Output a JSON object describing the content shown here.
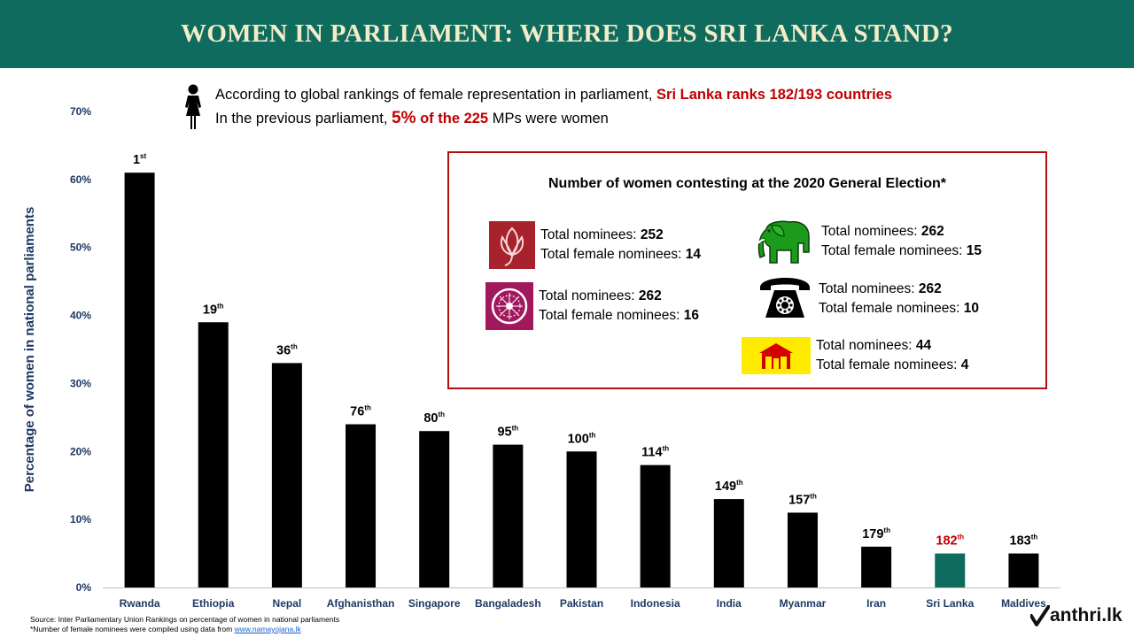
{
  "header": {
    "title": "WOMEN IN PARLIAMENT: WHERE DOES SRI LANKA STAND?"
  },
  "intro": {
    "line1_prefix": "According to global rankings of female representation in parliament, ",
    "line1_highlight": "Sri Lanka ranks 182/193 countries",
    "line2_prefix": "In the previous parliament, ",
    "line2_highlight_pct": "5%",
    "line2_highlight_rest": " of the 225",
    "line2_suffix": " MPs were women"
  },
  "chart_data": {
    "type": "bar",
    "ylabel": "Percentage of women in national parliaments",
    "ylim": [
      0,
      70
    ],
    "ytick_labels": [
      "0%",
      "10%",
      "20%",
      "30%",
      "40%",
      "50%",
      "60%",
      "70%"
    ],
    "categories": [
      "Rwanda",
      "Ethiopia",
      "Nepal",
      "Afghanisthan",
      "Singapore",
      "Bangaladesh",
      "Pakistan",
      "Indonesia",
      "India",
      "Myanmar",
      "Iran",
      "Sri Lanka",
      "Maldives"
    ],
    "values": [
      61,
      39,
      33,
      24,
      23,
      21,
      20,
      18,
      13,
      11,
      6,
      5,
      5
    ],
    "rank_numbers": [
      "1",
      "19",
      "36",
      "76",
      "80",
      "95",
      "100",
      "114",
      "149",
      "157",
      "179",
      "182",
      "183"
    ],
    "rank_suffixes": [
      "st",
      "th",
      "th",
      "th",
      "th",
      "th",
      "th",
      "th",
      "th",
      "th",
      "th",
      "th",
      "th"
    ],
    "highlight_category": "Sri Lanka",
    "bar_color": "#000000",
    "highlight_bar_color": "#0e6b5e",
    "highlight_label_color": "#c00000",
    "axis_label_color": "#1f3864"
  },
  "contest_box": {
    "title": "Number of women contesting  at the 2020 General Election*",
    "total_label": "Total nominees: ",
    "female_label": "Total female nominees: ",
    "parties": [
      {
        "icon": "lotus-bud-icon",
        "total": "252",
        "female": "14"
      },
      {
        "icon": "elephant-icon",
        "total": "262",
        "female": "15"
      },
      {
        "icon": "compass-icon",
        "total": "262",
        "female": "16"
      },
      {
        "icon": "telephone-icon",
        "total": "262",
        "female": "10"
      },
      {
        "icon": "house-icon",
        "total": "44",
        "female": "4"
      }
    ]
  },
  "footer": {
    "source": "Source: Inter Parliamentary Union Rankings on percentage of women in national parliaments",
    "note_prefix": "*Number of female nominees were compiled using data from ",
    "note_link": "www.namayojana.lk"
  },
  "logo": {
    "text": "anthri.lk",
    "icon": "checkmark-icon"
  }
}
